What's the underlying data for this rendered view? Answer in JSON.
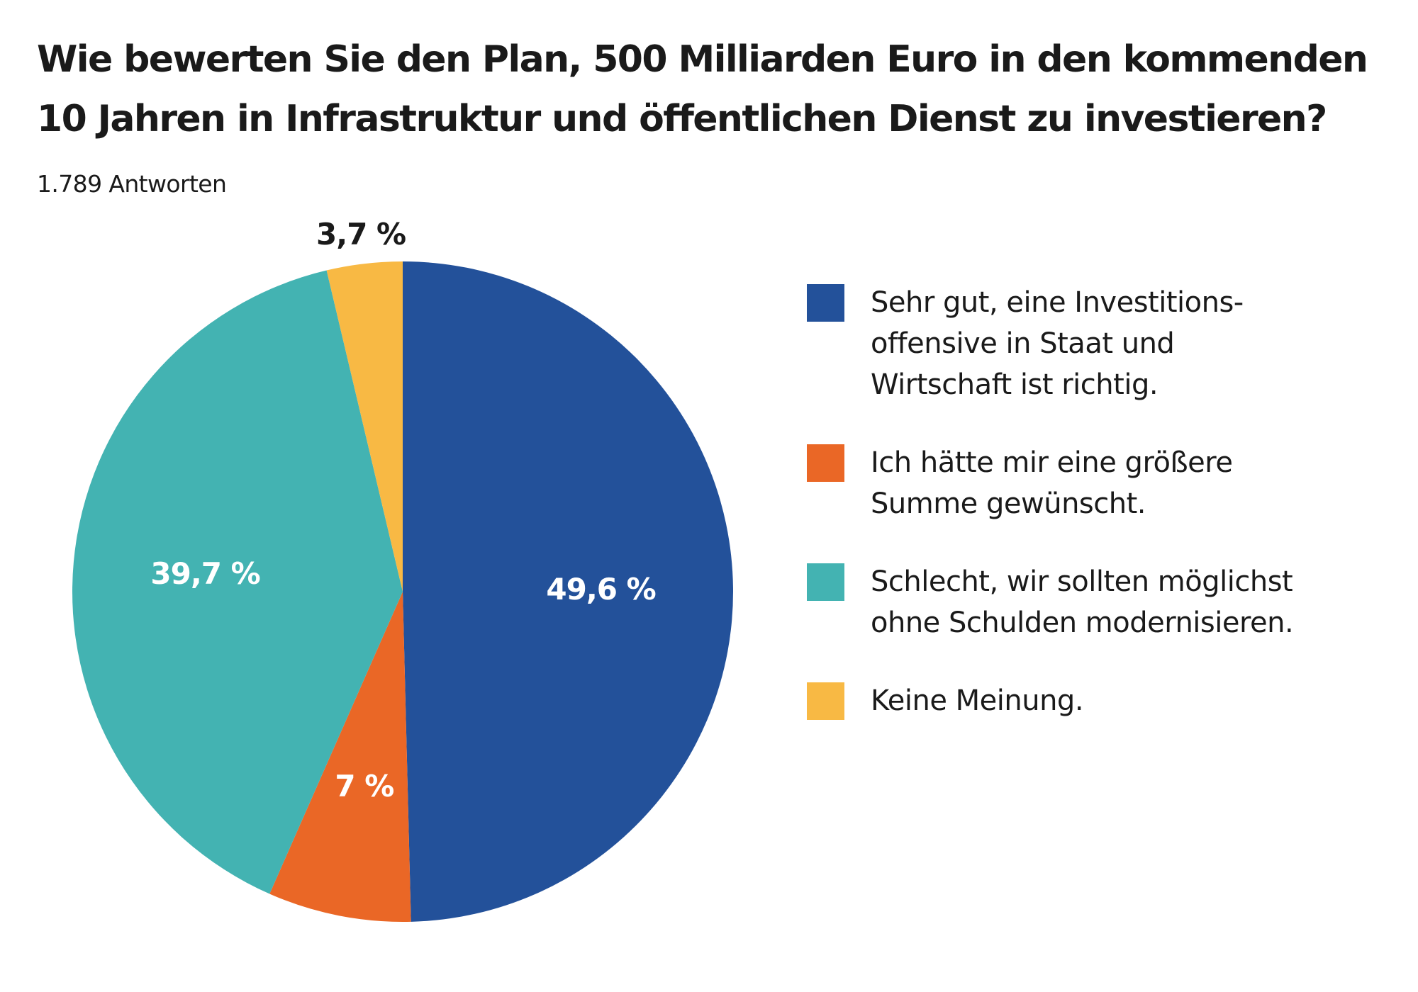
{
  "title_lines": [
    "Wie bewerten Sie den Plan, 500 Milliarden Euro in den kommenden",
    "10 Jahren in Infrastruktur und öffentlichen Dienst zu investieren?"
  ],
  "subtitle": "1.789 Antworten",
  "colors": {
    "blue": "#23519a",
    "orange": "#ea6726",
    "teal": "#43b3b2",
    "yellow": "#f8b944",
    "label_light": "#ffffff",
    "label_dark": "#1a1a1a"
  },
  "chart_data": {
    "type": "pie",
    "start": "top",
    "direction": "clockwise",
    "slices": [
      {
        "label_lines": [
          "Sehr gut, eine Investitions-",
          "offensive in Staat und",
          "Wirtschaft ist richtig."
        ],
        "value": 49.6,
        "value_label": "49,6 %",
        "color": "#23519a",
        "label_color": "#ffffff",
        "label_placement": "inside"
      },
      {
        "label_lines": [
          "Ich hätte mir eine größere",
          "Summe gewünscht."
        ],
        "value": 7,
        "value_label": "7 %",
        "color": "#ea6726",
        "label_color": "#ffffff",
        "label_placement": "inside"
      },
      {
        "label_lines": [
          "Schlecht, wir sollten möglichst",
          "ohne Schulden modernisieren."
        ],
        "value": 39.7,
        "value_label": "39,7 %",
        "color": "#43b3b2",
        "label_color": "#ffffff",
        "label_placement": "inside"
      },
      {
        "label_lines": [
          "Keine Meinung."
        ],
        "value": 3.7,
        "value_label": "3,7 %",
        "color": "#f8b944",
        "label_color": "#1a1a1a",
        "label_placement": "outside"
      }
    ],
    "legend_position": "right"
  }
}
